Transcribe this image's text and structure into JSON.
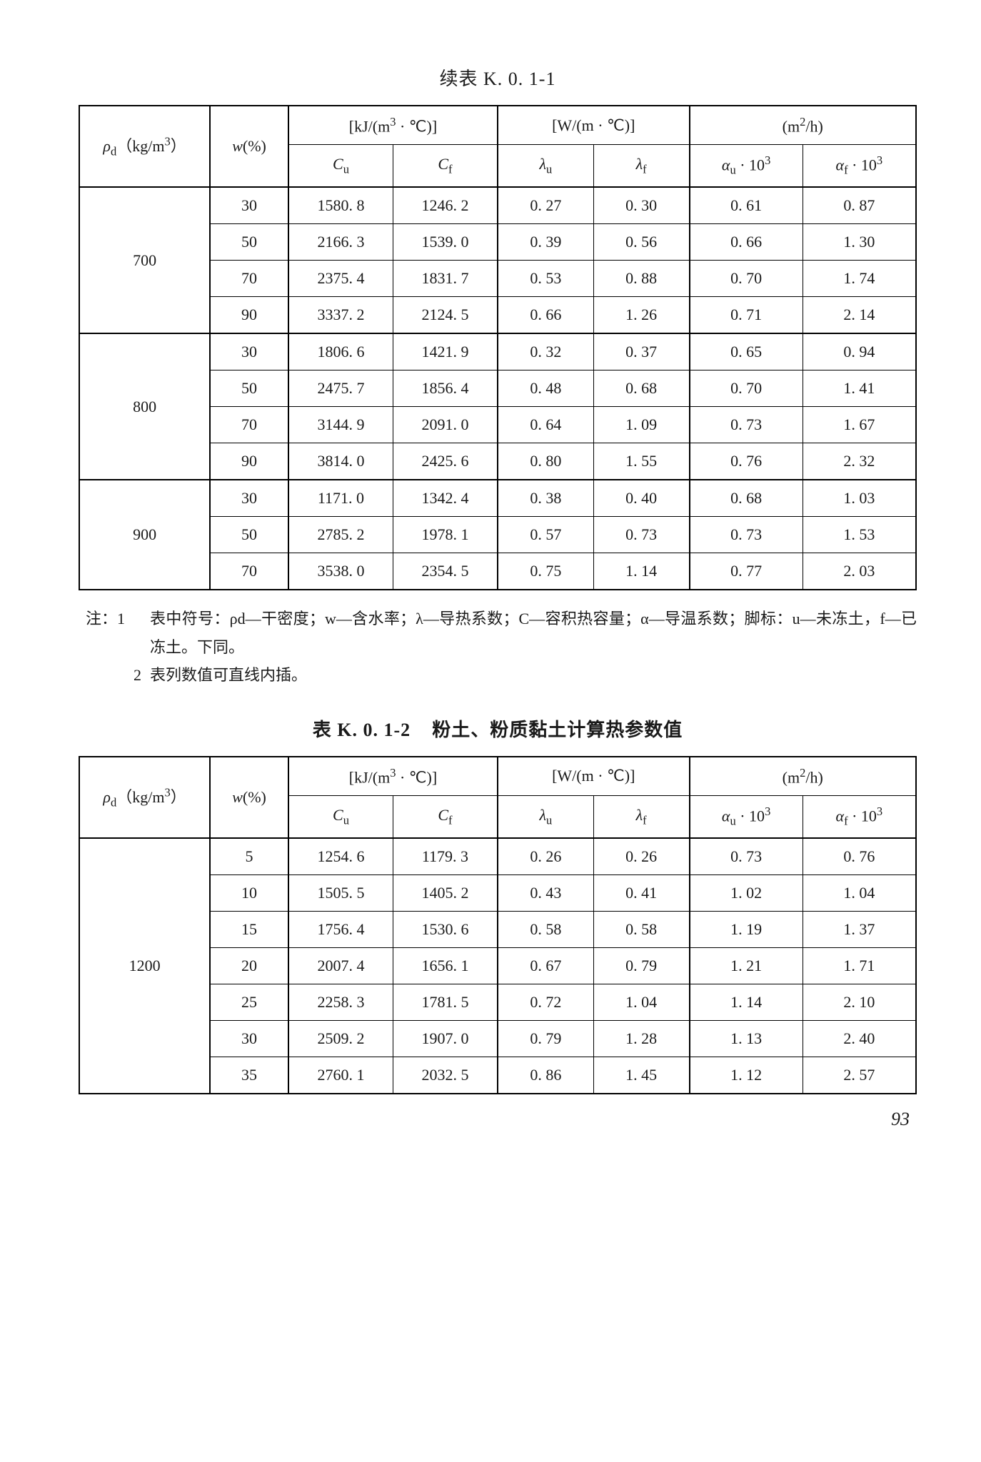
{
  "table1": {
    "title_prefix": "续表 K. 0. 1-1",
    "headers": {
      "rho": "ρd (kg/m³)",
      "w": "w(%)",
      "kj": "[kJ/(m³ · ℃)]",
      "Cu": "Cu",
      "Cf": "Cf",
      "Wm": "[W/(m · ℃)]",
      "lu": "λu",
      "lf": "λf",
      "m2h": "(m²/h)",
      "au": "αu · 10³",
      "af": "αf · 10³"
    },
    "groups": [
      {
        "rho": "700",
        "rows": [
          {
            "w": "30",
            "Cu": "1580. 8",
            "Cf": "1246. 2",
            "lu": "0. 27",
            "lf": "0. 30",
            "au": "0. 61",
            "af": "0. 87"
          },
          {
            "w": "50",
            "Cu": "2166. 3",
            "Cf": "1539. 0",
            "lu": "0. 39",
            "lf": "0. 56",
            "au": "0. 66",
            "af": "1. 30"
          },
          {
            "w": "70",
            "Cu": "2375. 4",
            "Cf": "1831. 7",
            "lu": "0. 53",
            "lf": "0. 88",
            "au": "0. 70",
            "af": "1. 74"
          },
          {
            "w": "90",
            "Cu": "3337. 2",
            "Cf": "2124. 5",
            "lu": "0. 66",
            "lf": "1. 26",
            "au": "0. 71",
            "af": "2. 14"
          }
        ]
      },
      {
        "rho": "800",
        "rows": [
          {
            "w": "30",
            "Cu": "1806. 6",
            "Cf": "1421. 9",
            "lu": "0. 32",
            "lf": "0. 37",
            "au": "0. 65",
            "af": "0. 94"
          },
          {
            "w": "50",
            "Cu": "2475. 7",
            "Cf": "1856. 4",
            "lu": "0. 48",
            "lf": "0. 68",
            "au": "0. 70",
            "af": "1. 41"
          },
          {
            "w": "70",
            "Cu": "3144. 9",
            "Cf": "2091. 0",
            "lu": "0. 64",
            "lf": "1. 09",
            "au": "0. 73",
            "af": "1. 67"
          },
          {
            "w": "90",
            "Cu": "3814. 0",
            "Cf": "2425. 6",
            "lu": "0. 80",
            "lf": "1. 55",
            "au": "0. 76",
            "af": "2. 32"
          }
        ]
      },
      {
        "rho": "900",
        "rows": [
          {
            "w": "30",
            "Cu": "1171. 0",
            "Cf": "1342. 4",
            "lu": "0. 38",
            "lf": "0. 40",
            "au": "0. 68",
            "af": "1. 03"
          },
          {
            "w": "50",
            "Cu": "2785. 2",
            "Cf": "1978. 1",
            "lu": "0. 57",
            "lf": "0. 73",
            "au": "0. 73",
            "af": "1. 53"
          },
          {
            "w": "70",
            "Cu": "3538. 0",
            "Cf": "2354. 5",
            "lu": "0. 75",
            "lf": "1. 14",
            "au": "0. 77",
            "af": "2. 03"
          }
        ]
      }
    ]
  },
  "notes": {
    "label": "注：",
    "items": [
      {
        "num": "1",
        "text": "表中符号：ρd—干密度；w—含水率；λ—导热系数；C—容积热容量；α—导温系数；脚标：u—未冻土，f—已冻土。下同。"
      },
      {
        "num": "2",
        "text": "表列数值可直线内插。"
      }
    ]
  },
  "table2": {
    "title_label": "表 K. 0. 1-2",
    "title_text": "粉土、粉质黏土计算热参数值",
    "headers": {
      "rho": "ρd (kg/m³)",
      "w": "w(%)",
      "kj": "[kJ/(m³ · ℃)]",
      "Cu": "Cu",
      "Cf": "Cf",
      "Wm": "[W/(m · ℃)]",
      "lu": "λu",
      "lf": "λf",
      "m2h": "(m²/h)",
      "au": "αu · 10³",
      "af": "αf · 10³"
    },
    "groups": [
      {
        "rho": "1200",
        "rows": [
          {
            "w": "5",
            "Cu": "1254. 6",
            "Cf": "1179. 3",
            "lu": "0. 26",
            "lf": "0. 26",
            "au": "0. 73",
            "af": "0. 76"
          },
          {
            "w": "10",
            "Cu": "1505. 5",
            "Cf": "1405. 2",
            "lu": "0. 43",
            "lf": "0. 41",
            "au": "1. 02",
            "af": "1. 04"
          },
          {
            "w": "15",
            "Cu": "1756. 4",
            "Cf": "1530. 6",
            "lu": "0. 58",
            "lf": "0. 58",
            "au": "1. 19",
            "af": "1. 37"
          },
          {
            "w": "20",
            "Cu": "2007. 4",
            "Cf": "1656. 1",
            "lu": "0. 67",
            "lf": "0. 79",
            "au": "1. 21",
            "af": "1. 71"
          },
          {
            "w": "25",
            "Cu": "2258. 3",
            "Cf": "1781. 5",
            "lu": "0. 72",
            "lf": "1. 04",
            "au": "1. 14",
            "af": "2. 10"
          },
          {
            "w": "30",
            "Cu": "2509. 2",
            "Cf": "1907. 0",
            "lu": "0. 79",
            "lf": "1. 28",
            "au": "1. 13",
            "af": "2. 40"
          },
          {
            "w": "35",
            "Cu": "2760. 1",
            "Cf": "2032. 5",
            "lu": "0. 86",
            "lf": "1. 45",
            "au": "1. 12",
            "af": "2. 57"
          }
        ]
      }
    ]
  },
  "page": "93"
}
